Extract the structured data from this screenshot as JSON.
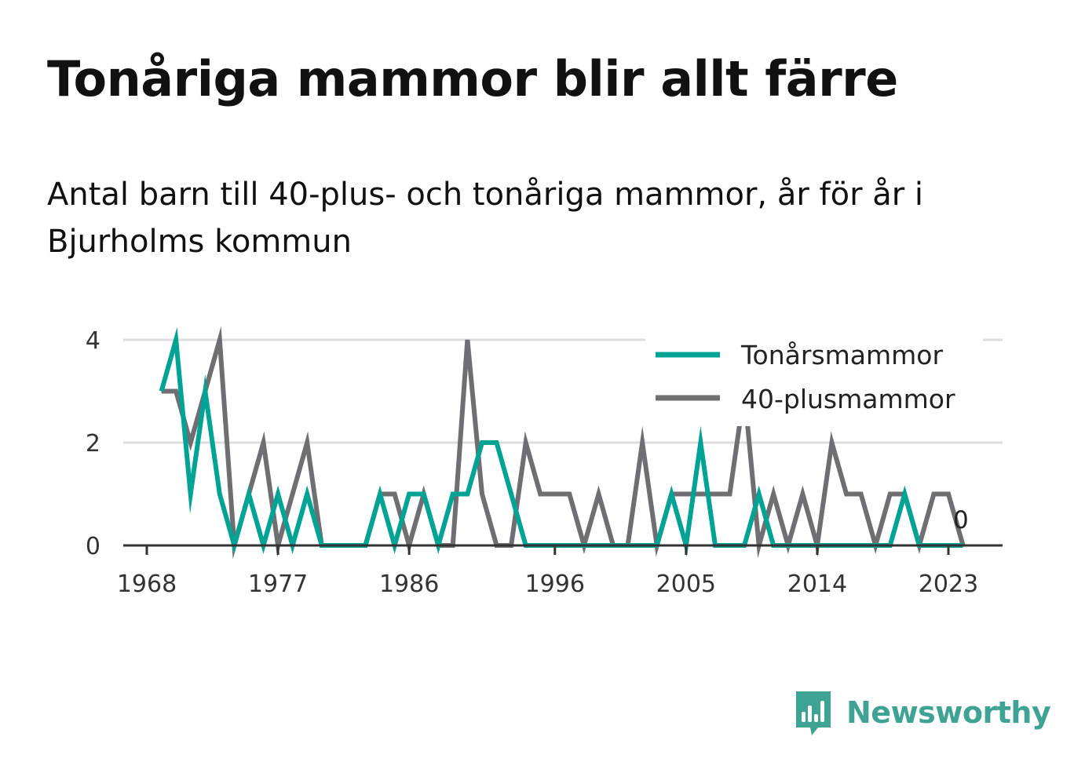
{
  "title": "Tonåriga mammor blir allt färre",
  "subtitle": "Antal barn till 40-plus- och tonåriga mammor, år för år i Bjurholms kommun",
  "brand": "Newsworthy",
  "colors": {
    "teen": "#00a394",
    "forty": "#6e6e73",
    "grid": "#dddddd",
    "axis": "#333333",
    "brand": "#3fa394"
  },
  "chart_data": {
    "type": "line",
    "x": [
      1969,
      1970,
      1971,
      1972,
      1973,
      1974,
      1975,
      1976,
      1977,
      1978,
      1979,
      1980,
      1981,
      1982,
      1983,
      1984,
      1985,
      1986,
      1987,
      1988,
      1989,
      1990,
      1991,
      1992,
      1993,
      1994,
      1995,
      1996,
      1997,
      1998,
      1999,
      2000,
      2001,
      2002,
      2003,
      2004,
      2005,
      2006,
      2007,
      2008,
      2009,
      2010,
      2011,
      2012,
      2013,
      2014,
      2015,
      2016,
      2017,
      2018,
      2019,
      2020,
      2021,
      2022,
      2023,
      2024
    ],
    "series": [
      {
        "name": "Tonårsmammor",
        "color": "#00a394",
        "values": [
          3,
          4,
          1,
          3,
          1,
          0,
          1,
          0,
          1,
          0,
          1,
          0,
          0,
          0,
          0,
          1,
          0,
          1,
          1,
          0,
          1,
          1,
          2,
          2,
          1,
          0,
          0,
          0,
          0,
          0,
          0,
          0,
          0,
          0,
          0,
          1,
          0,
          2,
          0,
          0,
          0,
          1,
          0,
          0,
          0,
          0,
          0,
          0,
          0,
          0,
          0,
          1,
          0,
          0,
          0,
          0
        ]
      },
      {
        "name": "40-plusmammor",
        "color": "#6e6e73",
        "values": [
          3,
          3,
          2,
          3,
          4,
          0,
          1,
          2,
          0,
          1,
          2,
          0,
          0,
          0,
          0,
          1,
          1,
          0,
          1,
          0,
          0,
          4,
          1,
          0,
          0,
          2,
          1,
          1,
          1,
          0,
          1,
          0,
          0,
          2,
          0,
          1,
          1,
          1,
          1,
          1,
          3,
          0,
          1,
          0,
          1,
          0,
          2,
          1,
          1,
          0,
          1,
          1,
          0,
          1,
          1,
          0
        ]
      }
    ],
    "end_label": "0",
    "x_ticks": [
      "1968",
      "1977",
      "1986",
      "1996",
      "2005",
      "2014",
      "2023"
    ],
    "y_ticks": [
      "0",
      "2",
      "4"
    ],
    "ylim": [
      0,
      4
    ],
    "grid": true,
    "legend_position": "top-right"
  }
}
